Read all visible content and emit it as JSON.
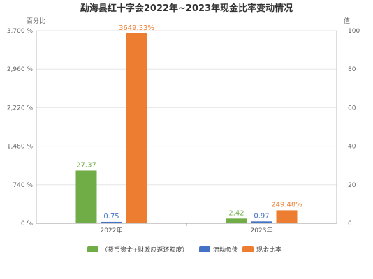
{
  "chart_data": {
    "type": "bar",
    "title": "勐海县红十字会2022年~2023年现金比率变动情况",
    "y_left_name": "百分比",
    "y_right_name": "值",
    "categories": [
      "2022年",
      "2023年"
    ],
    "y_left": {
      "min": 0,
      "max": 3700,
      "ticks": [
        0,
        740,
        1480,
        2220,
        2960,
        3700
      ],
      "tick_labels": [
        "0 %",
        "740 %",
        "1,480 %",
        "2,220 %",
        "2,960 %",
        "3,700 %"
      ]
    },
    "y_right": {
      "min": 0,
      "max": 100,
      "ticks": [
        0,
        20,
        40,
        60,
        80,
        100
      ],
      "tick_labels": [
        "0",
        "20",
        "40",
        "60",
        "80",
        "100"
      ]
    },
    "series": [
      {
        "name": "（货币资金+财政应返还额度）",
        "axis": "right",
        "color": "#70ad47",
        "values": [
          27.37,
          2.42
        ],
        "labels": [
          "27.37",
          "2.42"
        ]
      },
      {
        "name": "流动负债",
        "axis": "right",
        "color": "#4472c4",
        "values": [
          0.75,
          0.97
        ],
        "labels": [
          "0.75",
          "0.97"
        ]
      },
      {
        "name": "现金比率",
        "axis": "left",
        "color": "#ed7d31",
        "values": [
          3649.33,
          249.48
        ],
        "labels": [
          "3649.33%",
          "249.48%"
        ]
      }
    ]
  }
}
